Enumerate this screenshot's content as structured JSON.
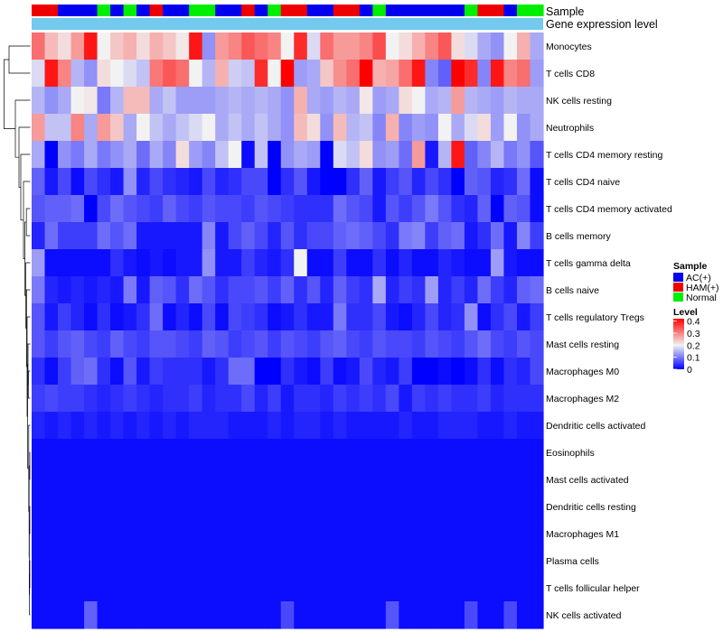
{
  "chart_data": {
    "type": "heatmap",
    "title": "",
    "annotation_labels": {
      "sample": "Sample",
      "gene": "Gene expression level"
    },
    "rows": [
      "Monocytes",
      "T cells CD8",
      "NK cells resting",
      "Neutrophils",
      "T cells CD4 memory resting",
      "T cells CD4 naive",
      "T cells CD4 memory activated",
      "B cells memory",
      "T cells gamma delta",
      "B cells naive",
      "T cells regulatory  Tregs",
      "Mast cells resting",
      "Macrophages M0",
      "Macrophages M2",
      "Dendritic cells activated",
      "Eosinophils",
      "Mast cells activated",
      "Dendritic cells resting",
      "Macrophages M1",
      "Plasma cells",
      "T cells follicular helper",
      "NK cells activated"
    ],
    "sample_groups": [
      "HAM(+)",
      "HAM(+)",
      "AC(+)",
      "AC(+)",
      "AC(+)",
      "Normal",
      "AC(+)",
      "Normal",
      "AC(+)",
      "HAM(+)",
      "AC(+)",
      "AC(+)",
      "Normal",
      "Normal",
      "AC(+)",
      "AC(+)",
      "HAM(+)",
      "AC(+)",
      "Normal",
      "HAM(+)",
      "HAM(+)",
      "AC(+)",
      "AC(+)",
      "HAM(+)",
      "HAM(+)",
      "AC(+)",
      "Normal",
      "AC(+)",
      "AC(+)",
      "AC(+)",
      "AC(+)",
      "AC(+)",
      "AC(+)",
      "Normal",
      "HAM(+)",
      "HAM(+)",
      "AC(+)",
      "Normal",
      "Normal"
    ],
    "values": [
      [
        0.32,
        0.25,
        0.22,
        0.28,
        0.4,
        0.2,
        0.24,
        0.26,
        0.22,
        0.26,
        0.24,
        0.21,
        0.4,
        0.12,
        0.28,
        0.3,
        0.34,
        0.32,
        0.3,
        0.2,
        0.38,
        0.18,
        0.32,
        0.28,
        0.28,
        0.3,
        0.35,
        0.2,
        0.22,
        0.26,
        0.3,
        0.34,
        0.22,
        0.18,
        0.14,
        0.12,
        0.2,
        0.26,
        0.14
      ],
      [
        0.18,
        0.4,
        0.3,
        0.15,
        0.12,
        0.22,
        0.2,
        0.18,
        0.16,
        0.31,
        0.34,
        0.32,
        0.2,
        0.15,
        0.26,
        0.17,
        0.16,
        0.38,
        0.2,
        0.42,
        0.13,
        0.14,
        0.24,
        0.29,
        0.32,
        0.43,
        0.26,
        0.27,
        0.32,
        0.4,
        0.11,
        0.08,
        0.42,
        0.38,
        0.11,
        0.4,
        0.3,
        0.32,
        0.13
      ],
      [
        0.15,
        0.12,
        0.14,
        0.2,
        0.21,
        0.1,
        0.15,
        0.25,
        0.25,
        0.14,
        0.16,
        0.13,
        0.13,
        0.13,
        0.14,
        0.15,
        0.14,
        0.15,
        0.14,
        0.12,
        0.26,
        0.14,
        0.13,
        0.15,
        0.14,
        0.21,
        0.13,
        0.14,
        0.22,
        0.2,
        0.14,
        0.15,
        0.28,
        0.15,
        0.14,
        0.13,
        0.15,
        0.14,
        0.14
      ],
      [
        0.28,
        0.16,
        0.16,
        0.3,
        0.14,
        0.28,
        0.24,
        0.14,
        0.2,
        0.16,
        0.14,
        0.16,
        0.18,
        0.2,
        0.14,
        0.16,
        0.14,
        0.16,
        0.14,
        0.12,
        0.25,
        0.22,
        0.12,
        0.25,
        0.15,
        0.16,
        0.11,
        0.26,
        0.11,
        0.13,
        0.12,
        0.2,
        0.14,
        0.18,
        0.22,
        0.13,
        0.2,
        0.12,
        0.14
      ],
      [
        0.14,
        0.0,
        0.12,
        0.1,
        0.14,
        0.1,
        0.12,
        0.14,
        0.09,
        0.14,
        0.11,
        0.22,
        0.13,
        0.11,
        0.16,
        0.2,
        0.01,
        0.16,
        0.0,
        0.12,
        0.14,
        0.13,
        0.0,
        0.18,
        0.16,
        0.22,
        0.12,
        0.13,
        0.09,
        0.28,
        0.02,
        0.15,
        0.4,
        0.08,
        0.11,
        0.15,
        0.1,
        0.12,
        0.07
      ],
      [
        0.08,
        0.02,
        0.06,
        0.01,
        0.06,
        0.04,
        0.02,
        0.12,
        0.03,
        0.06,
        0.04,
        0.03,
        0.02,
        0.06,
        0.03,
        0.04,
        0.06,
        0.06,
        0.0,
        0.04,
        0.07,
        0.02,
        0.0,
        0.0,
        0.04,
        0.08,
        0.02,
        0.05,
        0.07,
        0.03,
        0.06,
        0.04,
        0.0,
        0.08,
        0.07,
        0.03,
        0.04,
        0.09,
        0.01
      ],
      [
        0.07,
        0.08,
        0.08,
        0.09,
        0.0,
        0.06,
        0.09,
        0.07,
        0.06,
        0.05,
        0.08,
        0.06,
        0.05,
        0.07,
        0.06,
        0.06,
        0.05,
        0.07,
        0.06,
        0.05,
        0.04,
        0.04,
        0.04,
        0.09,
        0.07,
        0.06,
        0.02,
        0.07,
        0.05,
        0.07,
        0.1,
        0.07,
        0.04,
        0.03,
        0.08,
        0.0,
        0.08,
        0.07,
        0.01
      ],
      [
        0.03,
        0.09,
        0.05,
        0.05,
        0.05,
        0.09,
        0.07,
        0.09,
        0.02,
        0.02,
        0.02,
        0.02,
        0.02,
        0.11,
        0.02,
        0.06,
        0.08,
        0.06,
        0.03,
        0.07,
        0.04,
        0.06,
        0.06,
        0.08,
        0.09,
        0.08,
        0.06,
        0.04,
        0.1,
        0.11,
        0.05,
        0.08,
        0.09,
        0.02,
        0.04,
        0.09,
        0.02,
        0.11,
        0.05
      ],
      [
        0.13,
        0.01,
        0.01,
        0.01,
        0.01,
        0.01,
        0.04,
        0.02,
        0.01,
        0.02,
        0.01,
        0.02,
        0.02,
        0.12,
        0.02,
        0.02,
        0.05,
        0.03,
        0.02,
        0.04,
        0.2,
        0.01,
        0.01,
        0.05,
        0.01,
        0.01,
        0.04,
        0.01,
        0.03,
        0.01,
        0.01,
        0.03,
        0.02,
        0.01,
        0.01,
        0.13,
        0.02,
        0.01,
        0.01
      ],
      [
        0.1,
        0.03,
        0.02,
        0.03,
        0.02,
        0.03,
        0.02,
        0.1,
        0.02,
        0.08,
        0.07,
        0.04,
        0.09,
        0.07,
        0.04,
        0.06,
        0.06,
        0.07,
        0.05,
        0.08,
        0.04,
        0.07,
        0.03,
        0.08,
        0.05,
        0.04,
        0.14,
        0.03,
        0.05,
        0.04,
        0.13,
        0.03,
        0.05,
        0.03,
        0.09,
        0.05,
        0.03,
        0.08,
        0.09
      ],
      [
        0.07,
        0.02,
        0.05,
        0.03,
        0.01,
        0.04,
        0.01,
        0.02,
        0.04,
        0.09,
        0.01,
        0.03,
        0.01,
        0.06,
        0.01,
        0.06,
        0.05,
        0.04,
        0.01,
        0.02,
        0.04,
        0.02,
        0.02,
        0.1,
        0.04,
        0.04,
        0.06,
        0.02,
        0.01,
        0.03,
        0.06,
        0.03,
        0.04,
        0.12,
        0.01,
        0.04,
        0.06,
        0.02,
        0.05
      ],
      [
        0.07,
        0.05,
        0.07,
        0.08,
        0.06,
        0.05,
        0.08,
        0.06,
        0.05,
        0.07,
        0.07,
        0.06,
        0.05,
        0.08,
        0.07,
        0.05,
        0.06,
        0.07,
        0.05,
        0.07,
        0.06,
        0.05,
        0.07,
        0.08,
        0.06,
        0.05,
        0.07,
        0.06,
        0.06,
        0.05,
        0.07,
        0.06,
        0.05,
        0.07,
        0.09,
        0.06,
        0.05,
        0.07,
        0.06
      ],
      [
        0.04,
        0.01,
        0.05,
        0.08,
        0.09,
        0.04,
        0.01,
        0.07,
        0.02,
        0.05,
        0.04,
        0.04,
        0.04,
        0.02,
        0.04,
        0.09,
        0.09,
        0.0,
        0.0,
        0.04,
        0.02,
        0.01,
        0.05,
        0.01,
        0.02,
        0.06,
        0.03,
        0.02,
        0.05,
        0.0,
        0.0,
        0.01,
        0.0,
        0.01,
        0.04,
        0.01,
        0.04,
        0.03,
        0.06
      ],
      [
        0.05,
        0.06,
        0.05,
        0.05,
        0.04,
        0.03,
        0.04,
        0.05,
        0.04,
        0.03,
        0.04,
        0.04,
        0.05,
        0.03,
        0.04,
        0.04,
        0.06,
        0.03,
        0.05,
        0.02,
        0.04,
        0.04,
        0.03,
        0.05,
        0.04,
        0.05,
        0.04,
        0.06,
        0.02,
        0.05,
        0.04,
        0.05,
        0.04,
        0.04,
        0.05,
        0.03,
        0.04,
        0.04,
        0.04
      ],
      [
        0.03,
        0.02,
        0.03,
        0.02,
        0.03,
        0.02,
        0.03,
        0.02,
        0.03,
        0.02,
        0.03,
        0.02,
        0.03,
        0.03,
        0.03,
        0.02,
        0.02,
        0.02,
        0.03,
        0.02,
        0.03,
        0.03,
        0.02,
        0.03,
        0.02,
        0.02,
        0.02,
        0.02,
        0.03,
        0.02,
        0.02,
        0.03,
        0.03,
        0.03,
        0.02,
        0.02,
        0.03,
        0.02,
        0.02
      ],
      [
        0.01,
        0.01,
        0.01,
        0.01,
        0.01,
        0.01,
        0.01,
        0.01,
        0.01,
        0.01,
        0.01,
        0.01,
        0.01,
        0.01,
        0.01,
        0.01,
        0.01,
        0.01,
        0.01,
        0.01,
        0.01,
        0.01,
        0.01,
        0.01,
        0.01,
        0.01,
        0.01,
        0.01,
        0.01,
        0.01,
        0.01,
        0.01,
        0.01,
        0.01,
        0.01,
        0.01,
        0.01,
        0.01,
        0.01
      ],
      [
        0.01,
        0.01,
        0.01,
        0.01,
        0.01,
        0.01,
        0.01,
        0.01,
        0.01,
        0.01,
        0.01,
        0.01,
        0.01,
        0.01,
        0.01,
        0.01,
        0.01,
        0.01,
        0.01,
        0.01,
        0.01,
        0.01,
        0.01,
        0.01,
        0.01,
        0.01,
        0.01,
        0.01,
        0.01,
        0.01,
        0.01,
        0.01,
        0.01,
        0.01,
        0.01,
        0.01,
        0.01,
        0.01,
        0.01
      ],
      [
        0.01,
        0.01,
        0.01,
        0.01,
        0.01,
        0.01,
        0.01,
        0.01,
        0.01,
        0.01,
        0.01,
        0.01,
        0.01,
        0.01,
        0.01,
        0.01,
        0.01,
        0.01,
        0.01,
        0.01,
        0.01,
        0.01,
        0.01,
        0.01,
        0.01,
        0.01,
        0.01,
        0.01,
        0.01,
        0.01,
        0.01,
        0.01,
        0.01,
        0.01,
        0.01,
        0.01,
        0.01,
        0.01,
        0.01
      ],
      [
        0.01,
        0.01,
        0.01,
        0.01,
        0.01,
        0.01,
        0.01,
        0.01,
        0.01,
        0.01,
        0.01,
        0.01,
        0.01,
        0.01,
        0.01,
        0.01,
        0.01,
        0.01,
        0.01,
        0.01,
        0.01,
        0.01,
        0.01,
        0.01,
        0.01,
        0.01,
        0.01,
        0.01,
        0.01,
        0.01,
        0.01,
        0.01,
        0.01,
        0.01,
        0.01,
        0.01,
        0.01,
        0.01,
        0.01
      ],
      [
        0.01,
        0.01,
        0.01,
        0.01,
        0.01,
        0.01,
        0.01,
        0.01,
        0.01,
        0.01,
        0.01,
        0.01,
        0.01,
        0.01,
        0.01,
        0.01,
        0.01,
        0.01,
        0.01,
        0.01,
        0.01,
        0.01,
        0.01,
        0.01,
        0.01,
        0.01,
        0.01,
        0.01,
        0.01,
        0.01,
        0.01,
        0.01,
        0.01,
        0.01,
        0.01,
        0.01,
        0.01,
        0.01,
        0.01
      ],
      [
        0.01,
        0.01,
        0.01,
        0.01,
        0.01,
        0.01,
        0.01,
        0.01,
        0.01,
        0.01,
        0.01,
        0.01,
        0.01,
        0.01,
        0.01,
        0.01,
        0.01,
        0.01,
        0.01,
        0.01,
        0.01,
        0.01,
        0.01,
        0.01,
        0.01,
        0.01,
        0.01,
        0.01,
        0.01,
        0.01,
        0.01,
        0.01,
        0.01,
        0.01,
        0.01,
        0.01,
        0.01,
        0.01,
        0.01
      ],
      [
        0.01,
        0.01,
        0.01,
        0.01,
        0.08,
        0.01,
        0.01,
        0.01,
        0.01,
        0.01,
        0.01,
        0.01,
        0.01,
        0.01,
        0.01,
        0.01,
        0.01,
        0.01,
        0.01,
        0.06,
        0.01,
        0.01,
        0.01,
        0.01,
        0.01,
        0.01,
        0.01,
        0.07,
        0.01,
        0.01,
        0.01,
        0.01,
        0.01,
        0.06,
        0.01,
        0.01,
        0.06,
        0.01,
        0.01
      ]
    ],
    "legend_sample": {
      "title": "Sample",
      "items": [
        {
          "label": "AC(+)",
          "color": "#0000ee"
        },
        {
          "label": "HAM(+)",
          "color": "#ee0000"
        },
        {
          "label": "Normal",
          "color": "#00ee00"
        }
      ]
    },
    "legend_level": {
      "title": "Level",
      "ticks": [
        "0.4",
        "0.3",
        "0.2",
        "0.1",
        "0"
      ],
      "tick_values": [
        0.4,
        0.3,
        0.2,
        0.1,
        0
      ],
      "range": [
        0,
        0.42
      ]
    },
    "color_scale": {
      "low": "#0000ff",
      "mid": "#f2f2f2",
      "high": "#ff0000",
      "mid_value": 0.2
    },
    "gene_bar_color": "#73c9ee"
  }
}
